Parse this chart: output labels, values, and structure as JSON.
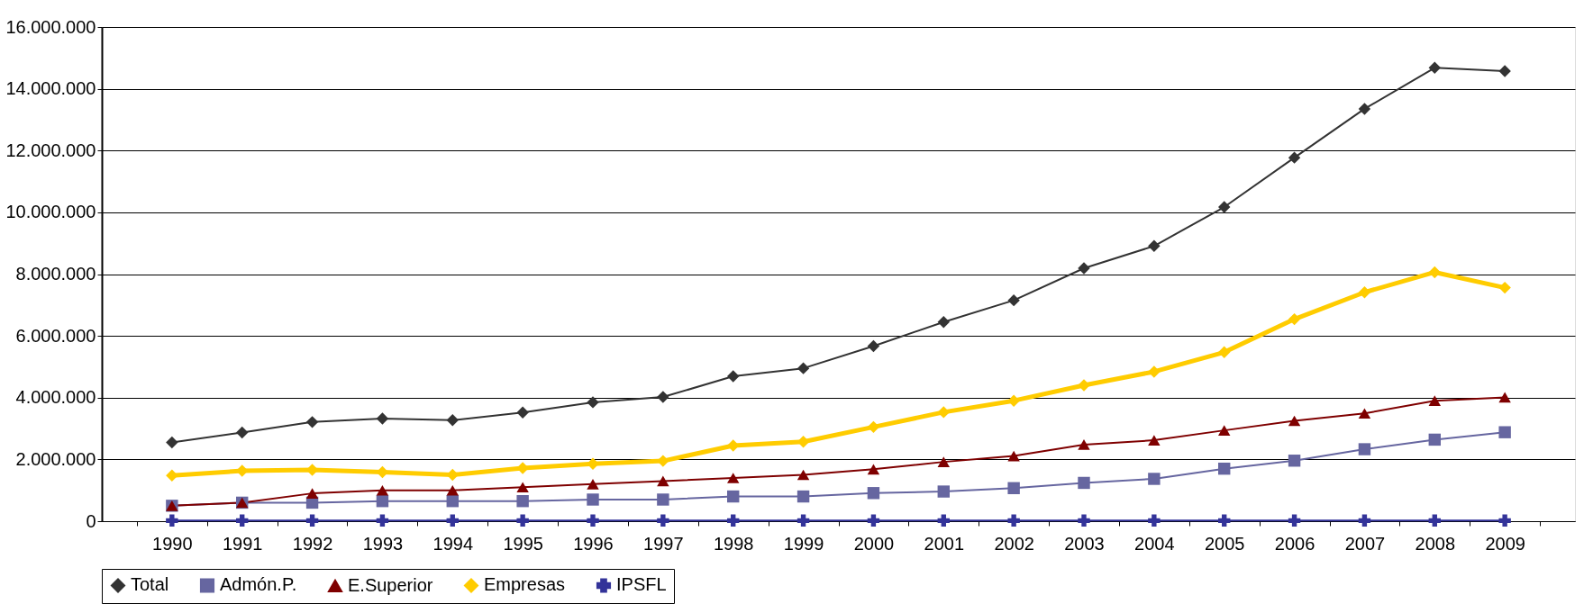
{
  "chart_data": {
    "type": "line",
    "categories": [
      "1990",
      "1991",
      "1992",
      "1993",
      "1994",
      "1995",
      "1996",
      "1997",
      "1998",
      "1999",
      "2000",
      "2001",
      "2002",
      "2003",
      "2004",
      "2005",
      "2006",
      "2007",
      "2008",
      "2009"
    ],
    "series": [
      {
        "name": "Total",
        "color": "#333333",
        "marker": "diamond",
        "values": [
          2550000,
          2870000,
          3210000,
          3320000,
          3270000,
          3520000,
          3850000,
          4020000,
          4690000,
          4950000,
          5670000,
          6450000,
          7150000,
          8190000,
          8910000,
          10170000,
          11770000,
          13350000,
          14680000,
          14570000
        ]
      },
      {
        "name": "Admón.P.",
        "color": "#6666a0",
        "marker": "square",
        "values": [
          500000,
          600000,
          600000,
          650000,
          650000,
          650000,
          700000,
          700000,
          800000,
          800000,
          910000,
          960000,
          1070000,
          1240000,
          1370000,
          1700000,
          1960000,
          2330000,
          2640000,
          2880000
        ]
      },
      {
        "name": "E.Superior",
        "color": "#7f0000",
        "marker": "triangle",
        "values": [
          500000,
          600000,
          900000,
          1000000,
          1000000,
          1100000,
          1200000,
          1300000,
          1400000,
          1500000,
          1680000,
          1920000,
          2110000,
          2480000,
          2620000,
          2940000,
          3250000,
          3490000,
          3900000,
          4010000
        ]
      },
      {
        "name": "Empresas",
        "color": "#ffcc00",
        "marker": "diamond",
        "values": [
          1480000,
          1630000,
          1660000,
          1590000,
          1500000,
          1720000,
          1860000,
          1950000,
          2450000,
          2570000,
          3050000,
          3530000,
          3900000,
          4400000,
          4840000,
          5470000,
          6540000,
          7410000,
          8060000,
          7560000
        ]
      },
      {
        "name": "IPSFL",
        "color": "#333399",
        "marker": "cross",
        "values": [
          20000,
          20000,
          20000,
          20000,
          20000,
          20000,
          20000,
          20000,
          20000,
          20000,
          20000,
          20000,
          20000,
          20000,
          20000,
          20000,
          20000,
          20000,
          20000,
          20000
        ]
      }
    ],
    "ylim": [
      0,
      16000000
    ],
    "yticks": [
      {
        "value": 0,
        "label": "0"
      },
      {
        "value": 2000000,
        "label": "2.000.000"
      },
      {
        "value": 4000000,
        "label": "4.000.000"
      },
      {
        "value": 6000000,
        "label": "6.000.000"
      },
      {
        "value": 8000000,
        "label": "8.000.000"
      },
      {
        "value": 10000000,
        "label": "10.000.000"
      },
      {
        "value": 12000000,
        "label": "12.000.000"
      },
      {
        "value": 14000000,
        "label": "14.000.000"
      },
      {
        "value": 16000000,
        "label": "16.000.000"
      }
    ],
    "grid": "y",
    "legend": "bottom",
    "line_style": "solid"
  }
}
